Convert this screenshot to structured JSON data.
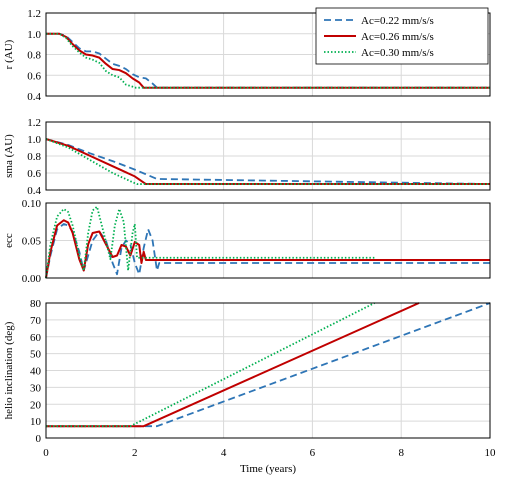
{
  "chart_data": {
    "type": "line",
    "xlabel": "Time (years)",
    "xlim": [
      0,
      10
    ],
    "xticks": [
      "0",
      "2",
      "4",
      "6",
      "8",
      "10"
    ],
    "legend": {
      "placement": "top-right",
      "entries": [
        "Ac=0.22 mm/s/s",
        "Ac=0.26 mm/s/s",
        "Ac=0.30 mm/s/s"
      ]
    },
    "series_styles": [
      {
        "color": "#2e75b6",
        "dash": "dashed"
      },
      {
        "color": "#c00000",
        "dash": "solid"
      },
      {
        "color": "#00b050",
        "dash": "dotted"
      }
    ],
    "panels": [
      {
        "ylabel": "r (AU)",
        "ylim": [
          0.4,
          1.2
        ],
        "yticks": [
          "0.4",
          "0.6",
          "0.8",
          "1.0",
          "1.2"
        ],
        "series": [
          {
            "name": "Ac=0.22 mm/s/s",
            "x": [
              0,
              0.3,
              0.45,
              0.6,
              0.75,
              0.9,
              1.05,
              1.2,
              1.35,
              1.5,
              1.65,
              1.8,
              1.95,
              2.1,
              2.25,
              2.4,
              2.5,
              10
            ],
            "y": [
              1.0,
              1.0,
              0.98,
              0.92,
              0.86,
              0.83,
              0.83,
              0.81,
              0.76,
              0.71,
              0.69,
              0.66,
              0.61,
              0.58,
              0.57,
              0.52,
              0.48,
              0.48
            ]
          },
          {
            "name": "Ac=0.26 mm/s/s",
            "x": [
              0,
              0.3,
              0.45,
              0.6,
              0.75,
              0.9,
              1.05,
              1.2,
              1.35,
              1.5,
              1.65,
              1.8,
              1.95,
              2.1,
              2.2,
              10
            ],
            "y": [
              1.0,
              1.0,
              0.97,
              0.9,
              0.84,
              0.8,
              0.79,
              0.77,
              0.71,
              0.66,
              0.65,
              0.62,
              0.57,
              0.53,
              0.48,
              0.48
            ]
          },
          {
            "name": "Ac=0.30 mm/s/s",
            "x": [
              0,
              0.3,
              0.45,
              0.6,
              0.75,
              0.9,
              1.05,
              1.2,
              1.35,
              1.5,
              1.65,
              1.8,
              1.95,
              2.0,
              10
            ],
            "y": [
              1.0,
              1.0,
              0.96,
              0.88,
              0.82,
              0.77,
              0.75,
              0.72,
              0.64,
              0.6,
              0.58,
              0.51,
              0.49,
              0.48,
              0.48
            ]
          }
        ]
      },
      {
        "ylabel": "sma (AU)",
        "ylim": [
          0.4,
          1.2
        ],
        "yticks": [
          "0.4",
          "0.6",
          "0.8",
          "1.0",
          "1.2"
        ],
        "series": [
          {
            "name": "Ac=0.22 mm/s/s",
            "x": [
              0,
              0.5,
              1.0,
              1.5,
              2.0,
              2.5,
              10
            ],
            "y": [
              1.0,
              0.93,
              0.83,
              0.74,
              0.64,
              0.53,
              0.47
            ]
          },
          {
            "name": "Ac=0.26 mm/s/s",
            "x": [
              0,
              0.5,
              1.0,
              1.5,
              2.0,
              2.25,
              10
            ],
            "y": [
              1.0,
              0.92,
              0.8,
              0.68,
              0.56,
              0.47,
              0.47
            ]
          },
          {
            "name": "Ac=0.30 mm/s/s",
            "x": [
              0,
              0.5,
              1.0,
              1.5,
              2.0,
              2.05,
              10
            ],
            "y": [
              1.0,
              0.9,
              0.75,
              0.6,
              0.48,
              0.47,
              0.47
            ]
          }
        ]
      },
      {
        "ylabel": "ecc",
        "ylim": [
          0,
          0.1
        ],
        "yticks": [
          "0.00",
          "0.05",
          "0.10"
        ],
        "series": [
          {
            "name": "Ac=0.22 mm/s/s",
            "x": [
              0,
              0.1,
              0.25,
              0.4,
              0.5,
              0.6,
              0.75,
              0.85,
              0.95,
              1.05,
              1.2,
              1.35,
              1.5,
              1.6,
              1.7,
              1.8,
              1.9,
              2.0,
              2.1,
              2.2,
              2.3,
              2.4,
              2.5,
              2.55,
              10
            ],
            "y": [
              0.0,
              0.03,
              0.065,
              0.072,
              0.07,
              0.062,
              0.035,
              0.01,
              0.03,
              0.05,
              0.062,
              0.05,
              0.02,
              0.005,
              0.04,
              0.05,
              0.045,
              0.02,
              0.005,
              0.04,
              0.065,
              0.05,
              0.01,
              0.02,
              0.02
            ]
          },
          {
            "name": "Ac=0.26 mm/s/s",
            "x": [
              0,
              0.1,
              0.25,
              0.4,
              0.5,
              0.6,
              0.75,
              0.85,
              0.95,
              1.05,
              1.2,
              1.35,
              1.5,
              1.6,
              1.7,
              1.8,
              1.9,
              2.0,
              2.1,
              2.15,
              2.2,
              2.25,
              10
            ],
            "y": [
              0.0,
              0.035,
              0.07,
              0.077,
              0.074,
              0.06,
              0.025,
              0.01,
              0.045,
              0.06,
              0.062,
              0.045,
              0.028,
              0.03,
              0.044,
              0.042,
              0.03,
              0.048,
              0.044,
              0.02,
              0.035,
              0.024,
              0.024
            ]
          },
          {
            "name": "Ac=0.30 mm/s/s",
            "x": [
              0,
              0.1,
              0.25,
              0.4,
              0.5,
              0.6,
              0.75,
              0.85,
              0.95,
              1.05,
              1.15,
              1.3,
              1.45,
              1.55,
              1.65,
              1.75,
              1.85,
              1.95,
              2.0,
              2.05,
              7.4
            ],
            "y": [
              0.0,
              0.045,
              0.082,
              0.092,
              0.088,
              0.07,
              0.03,
              0.01,
              0.06,
              0.09,
              0.095,
              0.06,
              0.025,
              0.07,
              0.092,
              0.075,
              0.01,
              0.06,
              0.072,
              0.027,
              0.027
            ]
          }
        ]
      },
      {
        "ylabel": "helio inclination  (deg)",
        "ylim": [
          0,
          80
        ],
        "yticks": [
          "0",
          "10",
          "20",
          "30",
          "40",
          "50",
          "60",
          "70",
          "80"
        ],
        "series": [
          {
            "name": "Ac=0.22 mm/s/s",
            "x": [
              0,
              2.5,
              10
            ],
            "y": [
              7,
              7,
              80
            ]
          },
          {
            "name": "Ac=0.26 mm/s/s",
            "x": [
              0,
              2.2,
              8.4
            ],
            "y": [
              7,
              7,
              80
            ]
          },
          {
            "name": "Ac=0.30 mm/s/s",
            "x": [
              0,
              1.9,
              7.4
            ],
            "y": [
              7,
              7,
              80
            ]
          }
        ]
      }
    ]
  }
}
